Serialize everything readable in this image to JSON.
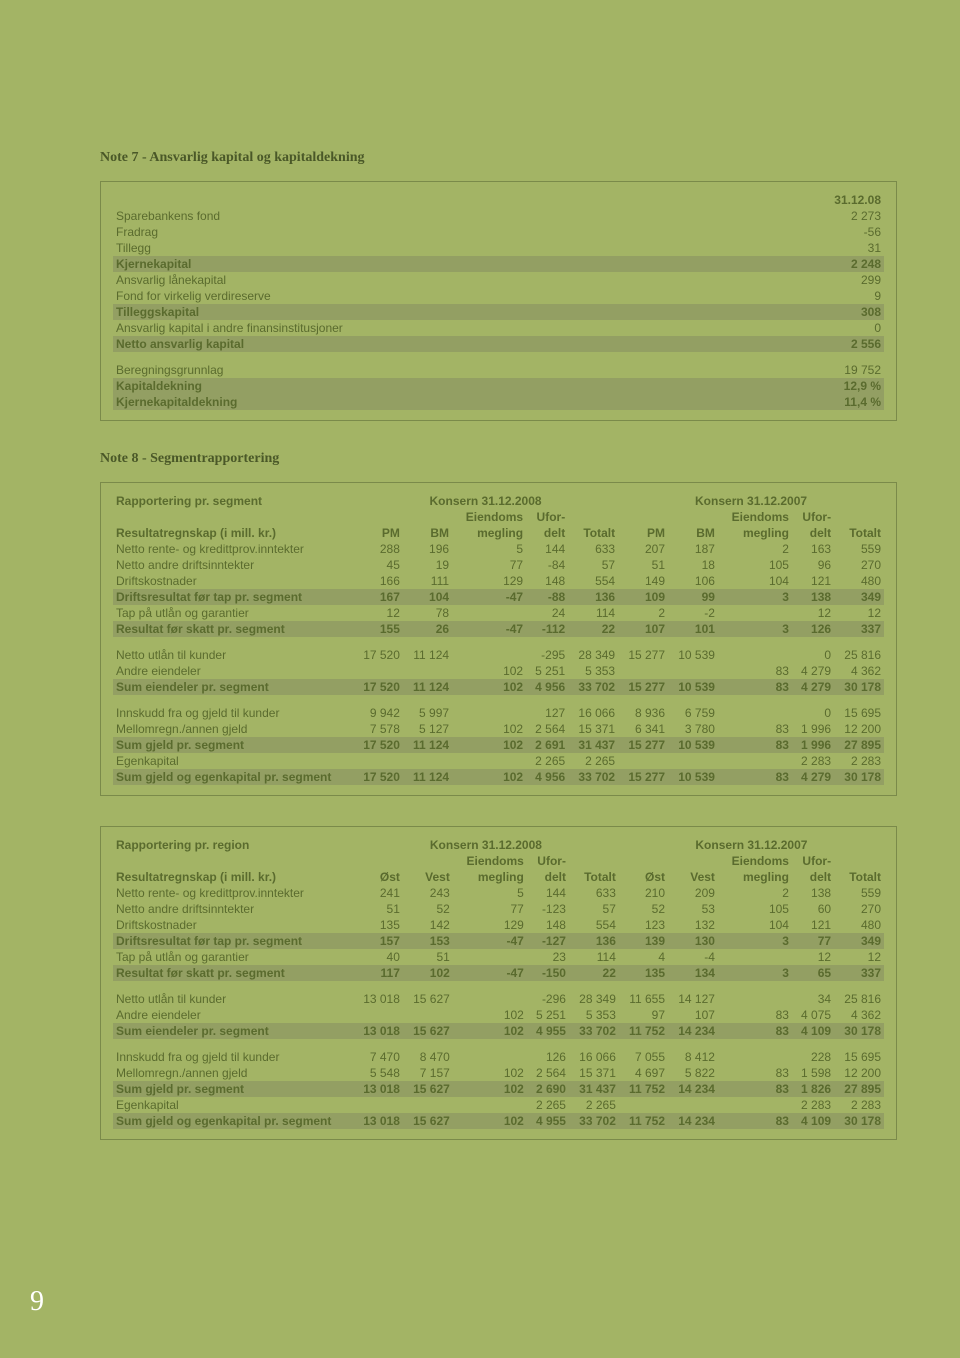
{
  "pageNumber": "9",
  "note7": {
    "title": "Note 7 - Ansvarlig kapital og kapitaldekning",
    "dateHeader": "31.12.08",
    "rows": [
      {
        "label": "Sparebankens fond",
        "value": "2 273",
        "hl": false
      },
      {
        "label": "Fradrag",
        "value": "-56",
        "hl": false
      },
      {
        "label": "Tillegg",
        "value": "31",
        "hl": false
      },
      {
        "label": "Kjernekapital",
        "value": "2 248",
        "hl": true
      },
      {
        "label": "Ansvarlig lånekapital",
        "value": "299",
        "hl": false
      },
      {
        "label": "Fond for virkelig verdireserve",
        "value": "9",
        "hl": false
      },
      {
        "label": "Tilleggskapital",
        "value": "308",
        "hl": true
      },
      {
        "label": "Ansvarlig kapital i andre finansinstitusjoner",
        "value": "0",
        "hl": false
      },
      {
        "label": "Netto ansvarlig kapital",
        "value": "2 556",
        "hl": true
      },
      {
        "label": "",
        "value": "",
        "hl": false,
        "spacer": true
      },
      {
        "label": "Beregningsgrunnlag",
        "value": "19 752",
        "hl": false
      },
      {
        "label": "Kapitaldekning",
        "value": "12,9 %",
        "hl": true
      },
      {
        "label": "Kjernekapitaldekning",
        "value": "11,4 %",
        "hl": true
      }
    ]
  },
  "note8": {
    "title": "Note 8 - Segmentrapportering",
    "segment": {
      "heading": "Rapportering pr. segment",
      "period1": "Konsern 31.12.2008",
      "period2": "Konsern 31.12.2007",
      "sub": "Resultatregnskap (i mill. kr.)",
      "cols1": [
        "PM",
        "BM",
        "Eiendoms megling",
        "Ufor- delt",
        "Totalt"
      ],
      "cols2": [
        "PM",
        "BM",
        "Eiendoms megling",
        "Ufor- delt",
        "Totalt"
      ],
      "rows": [
        {
          "label": "Netto rente- og kredittprov.inntekter",
          "v": [
            "288",
            "196",
            "5",
            "144",
            "633",
            "207",
            "187",
            "2",
            "163",
            "559"
          ],
          "hl": false
        },
        {
          "label": "Netto andre driftsinntekter",
          "v": [
            "45",
            "19",
            "77",
            "-84",
            "57",
            "51",
            "18",
            "105",
            "96",
            "270"
          ],
          "hl": false
        },
        {
          "label": "Driftskostnader",
          "v": [
            "166",
            "111",
            "129",
            "148",
            "554",
            "149",
            "106",
            "104",
            "121",
            "480"
          ],
          "hl": false
        },
        {
          "label": "Driftsresultat før tap pr. segment",
          "v": [
            "167",
            "104",
            "-47",
            "-88",
            "136",
            "109",
            "99",
            "3",
            "138",
            "349"
          ],
          "hl": true
        },
        {
          "label": "Tap på utlån og garantier",
          "v": [
            "12",
            "78",
            "",
            "24",
            "114",
            "2",
            "-2",
            "",
            "12",
            "12"
          ],
          "hl": false
        },
        {
          "label": "Resultat før skatt pr. segment",
          "v": [
            "155",
            "26",
            "-47",
            "-112",
            "22",
            "107",
            "101",
            "3",
            "126",
            "337"
          ],
          "hl": true
        },
        {
          "spacer": true
        },
        {
          "label": "Netto utlån til kunder",
          "v": [
            "17 520",
            "11 124",
            "",
            "-295",
            "28 349",
            "15 277",
            "10 539",
            "",
            "0",
            "25 816"
          ],
          "hl": false
        },
        {
          "label": "Andre eiendeler",
          "v": [
            "",
            "",
            "102",
            "5 251",
            "5 353",
            "",
            "",
            "83",
            "4 279",
            "4 362"
          ],
          "hl": false
        },
        {
          "label": "Sum eiendeler pr. segment",
          "v": [
            "17 520",
            "11 124",
            "102",
            "4 956",
            "33 702",
            "15 277",
            "10 539",
            "83",
            "4 279",
            "30 178"
          ],
          "hl": true
        },
        {
          "spacer": true
        },
        {
          "label": "Innskudd fra og gjeld til kunder",
          "v": [
            "9 942",
            "5 997",
            "",
            "127",
            "16 066",
            "8 936",
            "6 759",
            "",
            "0",
            "15 695"
          ],
          "hl": false
        },
        {
          "label": "Mellomregn./annen gjeld",
          "v": [
            "7 578",
            "5 127",
            "102",
            "2 564",
            "15 371",
            "6 341",
            "3 780",
            "83",
            "1 996",
            "12 200"
          ],
          "hl": false
        },
        {
          "label": "Sum gjeld pr. segment",
          "v": [
            "17 520",
            "11 124",
            "102",
            "2 691",
            "31 437",
            "15 277",
            "10 539",
            "83",
            "1 996",
            "27 895"
          ],
          "hl": true
        },
        {
          "label": "Egenkapital",
          "v": [
            "",
            "",
            "",
            "2 265",
            "2 265",
            "",
            "",
            "",
            "2 283",
            "2 283"
          ],
          "hl": false
        },
        {
          "label": "Sum gjeld og egenkapital pr. segment",
          "v": [
            "17 520",
            "11 124",
            "102",
            "4 956",
            "33 702",
            "15 277",
            "10 539",
            "83",
            "4 279",
            "30 178"
          ],
          "hl": true
        }
      ]
    },
    "region": {
      "heading": "Rapportering pr. region",
      "period1": "Konsern 31.12.2008",
      "period2": "Konsern 31.12.2007",
      "sub": "Resultatregnskap (i mill. kr.)",
      "cols1": [
        "Øst",
        "Vest",
        "Eiendoms megling",
        "Ufor- delt",
        "Totalt"
      ],
      "cols2": [
        "Øst",
        "Vest",
        "Eiendoms megling",
        "Ufor- delt",
        "Totalt"
      ],
      "rows": [
        {
          "label": "Netto rente- og kredittprov.inntekter",
          "v": [
            "241",
            "243",
            "5",
            "144",
            "633",
            "210",
            "209",
            "2",
            "138",
            "559"
          ],
          "hl": false
        },
        {
          "label": "Netto andre driftsinntekter",
          "v": [
            "51",
            "52",
            "77",
            "-123",
            "57",
            "52",
            "53",
            "105",
            "60",
            "270"
          ],
          "hl": false
        },
        {
          "label": "Driftskostnader",
          "v": [
            "135",
            "142",
            "129",
            "148",
            "554",
            "123",
            "132",
            "104",
            "121",
            "480"
          ],
          "hl": false
        },
        {
          "label": "Driftsresultat før tap pr. segment",
          "v": [
            "157",
            "153",
            "-47",
            "-127",
            "136",
            "139",
            "130",
            "3",
            "77",
            "349"
          ],
          "hl": true
        },
        {
          "label": "Tap på utlån og garantier",
          "v": [
            "40",
            "51",
            "",
            "23",
            "114",
            "4",
            "-4",
            "",
            "12",
            "12"
          ],
          "hl": false
        },
        {
          "label": "Resultat før skatt pr. segment",
          "v": [
            "117",
            "102",
            "-47",
            "-150",
            "22",
            "135",
            "134",
            "3",
            "65",
            "337"
          ],
          "hl": true
        },
        {
          "spacer": true
        },
        {
          "label": "Netto utlån til kunder",
          "v": [
            "13 018",
            "15 627",
            "",
            "-296",
            "28 349",
            "11 655",
            "14 127",
            "",
            "34",
            "25 816"
          ],
          "hl": false
        },
        {
          "label": "Andre eiendeler",
          "v": [
            "",
            "",
            "102",
            "5 251",
            "5 353",
            "97",
            "107",
            "83",
            "4 075",
            "4 362"
          ],
          "hl": false
        },
        {
          "label": "Sum eiendeler pr. segment",
          "v": [
            "13 018",
            "15 627",
            "102",
            "4 955",
            "33 702",
            "11 752",
            "14 234",
            "83",
            "4 109",
            "30 178"
          ],
          "hl": true
        },
        {
          "spacer": true
        },
        {
          "label": "Innskudd fra og gjeld til kunder",
          "v": [
            "7 470",
            "8 470",
            "",
            "126",
            "16 066",
            "7 055",
            "8 412",
            "",
            "228",
            "15 695"
          ],
          "hl": false
        },
        {
          "label": "Mellomregn./annen gjeld",
          "v": [
            "5 548",
            "7 157",
            "102",
            "2 564",
            "15 371",
            "4 697",
            "5 822",
            "83",
            "1 598",
            "12 200"
          ],
          "hl": false
        },
        {
          "label": "Sum gjeld pr. segment",
          "v": [
            "13 018",
            "15 627",
            "102",
            "2 690",
            "31 437",
            "11 752",
            "14 234",
            "83",
            "1 826",
            "27 895"
          ],
          "hl": true
        },
        {
          "label": "Egenkapital",
          "v": [
            "",
            "",
            "",
            "2 265",
            "2 265",
            "",
            "",
            "",
            "2 283",
            "2 283"
          ],
          "hl": false
        },
        {
          "label": "Sum gjeld og egenkapital pr. segment",
          "v": [
            "13 018",
            "15 627",
            "102",
            "4 955",
            "33 702",
            "11 752",
            "14 234",
            "83",
            "4 109",
            "30 178"
          ],
          "hl": true
        }
      ]
    }
  },
  "colors": {
    "pageBg": "#a3b465",
    "highlightBg": "#939f63",
    "text": "#5a6b2e",
    "border": "#7a8a4a"
  }
}
